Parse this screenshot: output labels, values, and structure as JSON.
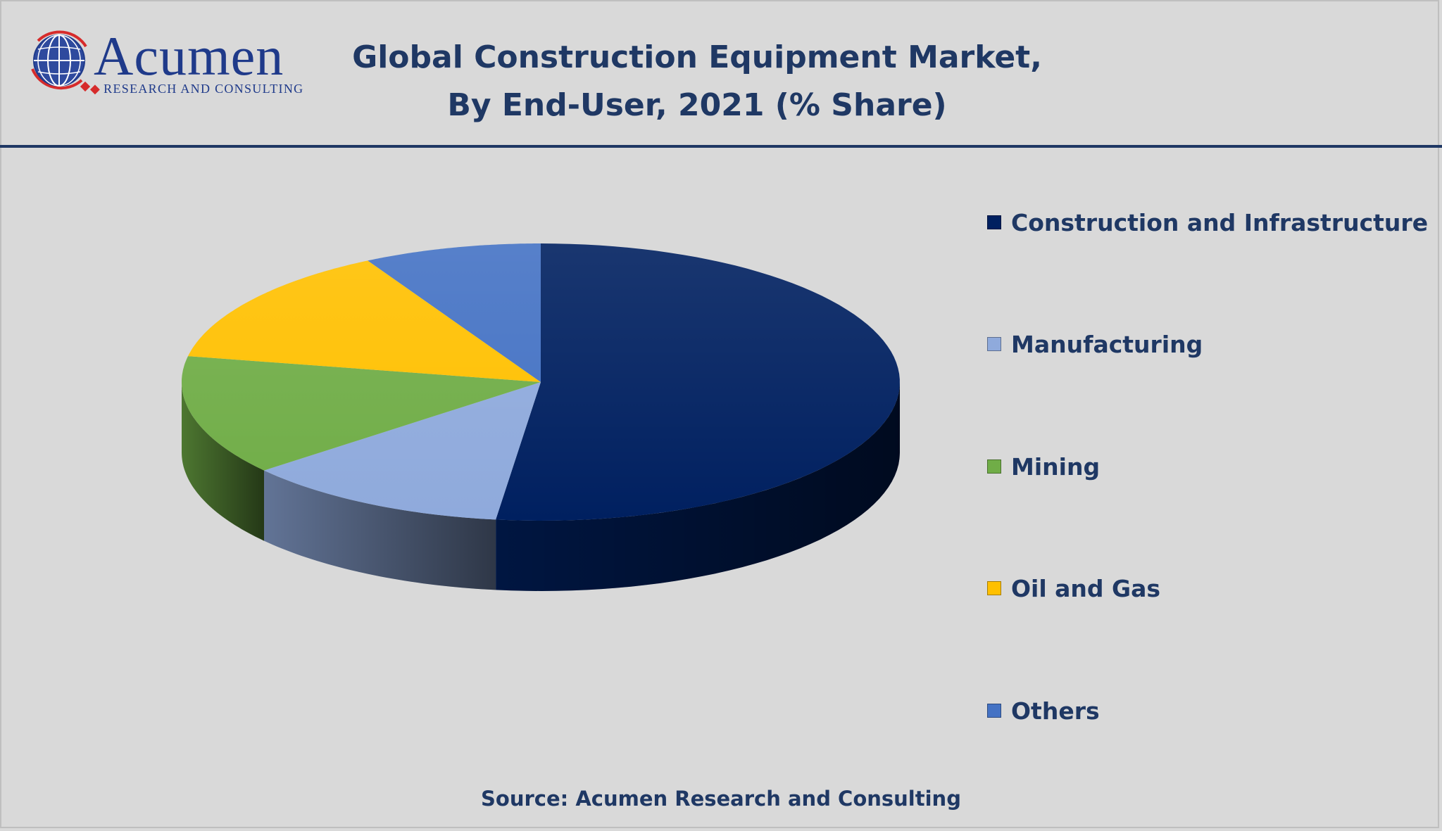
{
  "brand": {
    "name": "Acumen",
    "tagline": "Research and Consulting",
    "primary_color": "#1f3a8a",
    "accent_color": "#d62b2b"
  },
  "chart_data": {
    "type": "pie",
    "style": "3d",
    "title_line1": "Global Construction Equipment Market,",
    "title_line2": "By End-User, 2021 (% Share)",
    "slices": [
      {
        "label": "Construction and Infrastructure",
        "value": 52,
        "color": "#002060"
      },
      {
        "label": "Manufacturing",
        "value": 12,
        "color": "#8faadc"
      },
      {
        "label": "Mining",
        "value": 14,
        "color": "#70ad47"
      },
      {
        "label": "Oil and Gas",
        "value": 14,
        "color": "#ffc000"
      },
      {
        "label": "Others",
        "value": 8,
        "color": "#4472c4"
      }
    ],
    "legend_position": "right"
  },
  "source_text": "Source: Acumen Research and Consulting"
}
